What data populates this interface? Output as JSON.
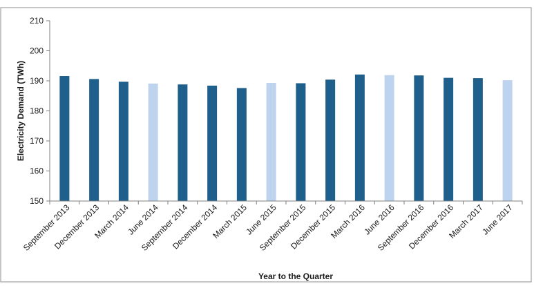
{
  "chart_data": {
    "type": "bar",
    "categories": [
      "September 2013",
      "December 2013",
      "March 2014",
      "June 2014",
      "September 2014",
      "December 2014",
      "March 2015",
      "June 2015",
      "September 2015",
      "December 2015",
      "March 2016",
      "June 2016",
      "September 2016",
      "December 2016",
      "March 2017",
      "June 2017"
    ],
    "values": [
      191.6,
      190.6,
      189.7,
      189.1,
      188.8,
      188.4,
      187.6,
      189.3,
      189.2,
      190.4,
      192.1,
      191.9,
      191.8,
      191.0,
      190.9,
      190.2
    ],
    "bar_colors": [
      "#1f5f8b",
      "#1f5f8b",
      "#1f5f8b",
      "#bdd3ee",
      "#1f5f8b",
      "#1f5f8b",
      "#1f5f8b",
      "#bdd3ee",
      "#1f5f8b",
      "#1f5f8b",
      "#1f5f8b",
      "#bdd3ee",
      "#1f5f8b",
      "#1f5f8b",
      "#1f5f8b",
      "#bdd3ee"
    ],
    "title": "",
    "xlabel": "Year to the Quarter",
    "ylabel": "Electricity Demand (TWh)",
    "ylim": [
      150,
      210
    ],
    "yticks": [
      150,
      160,
      170,
      180,
      190,
      200,
      210
    ],
    "grid": false,
    "legend": "none"
  }
}
